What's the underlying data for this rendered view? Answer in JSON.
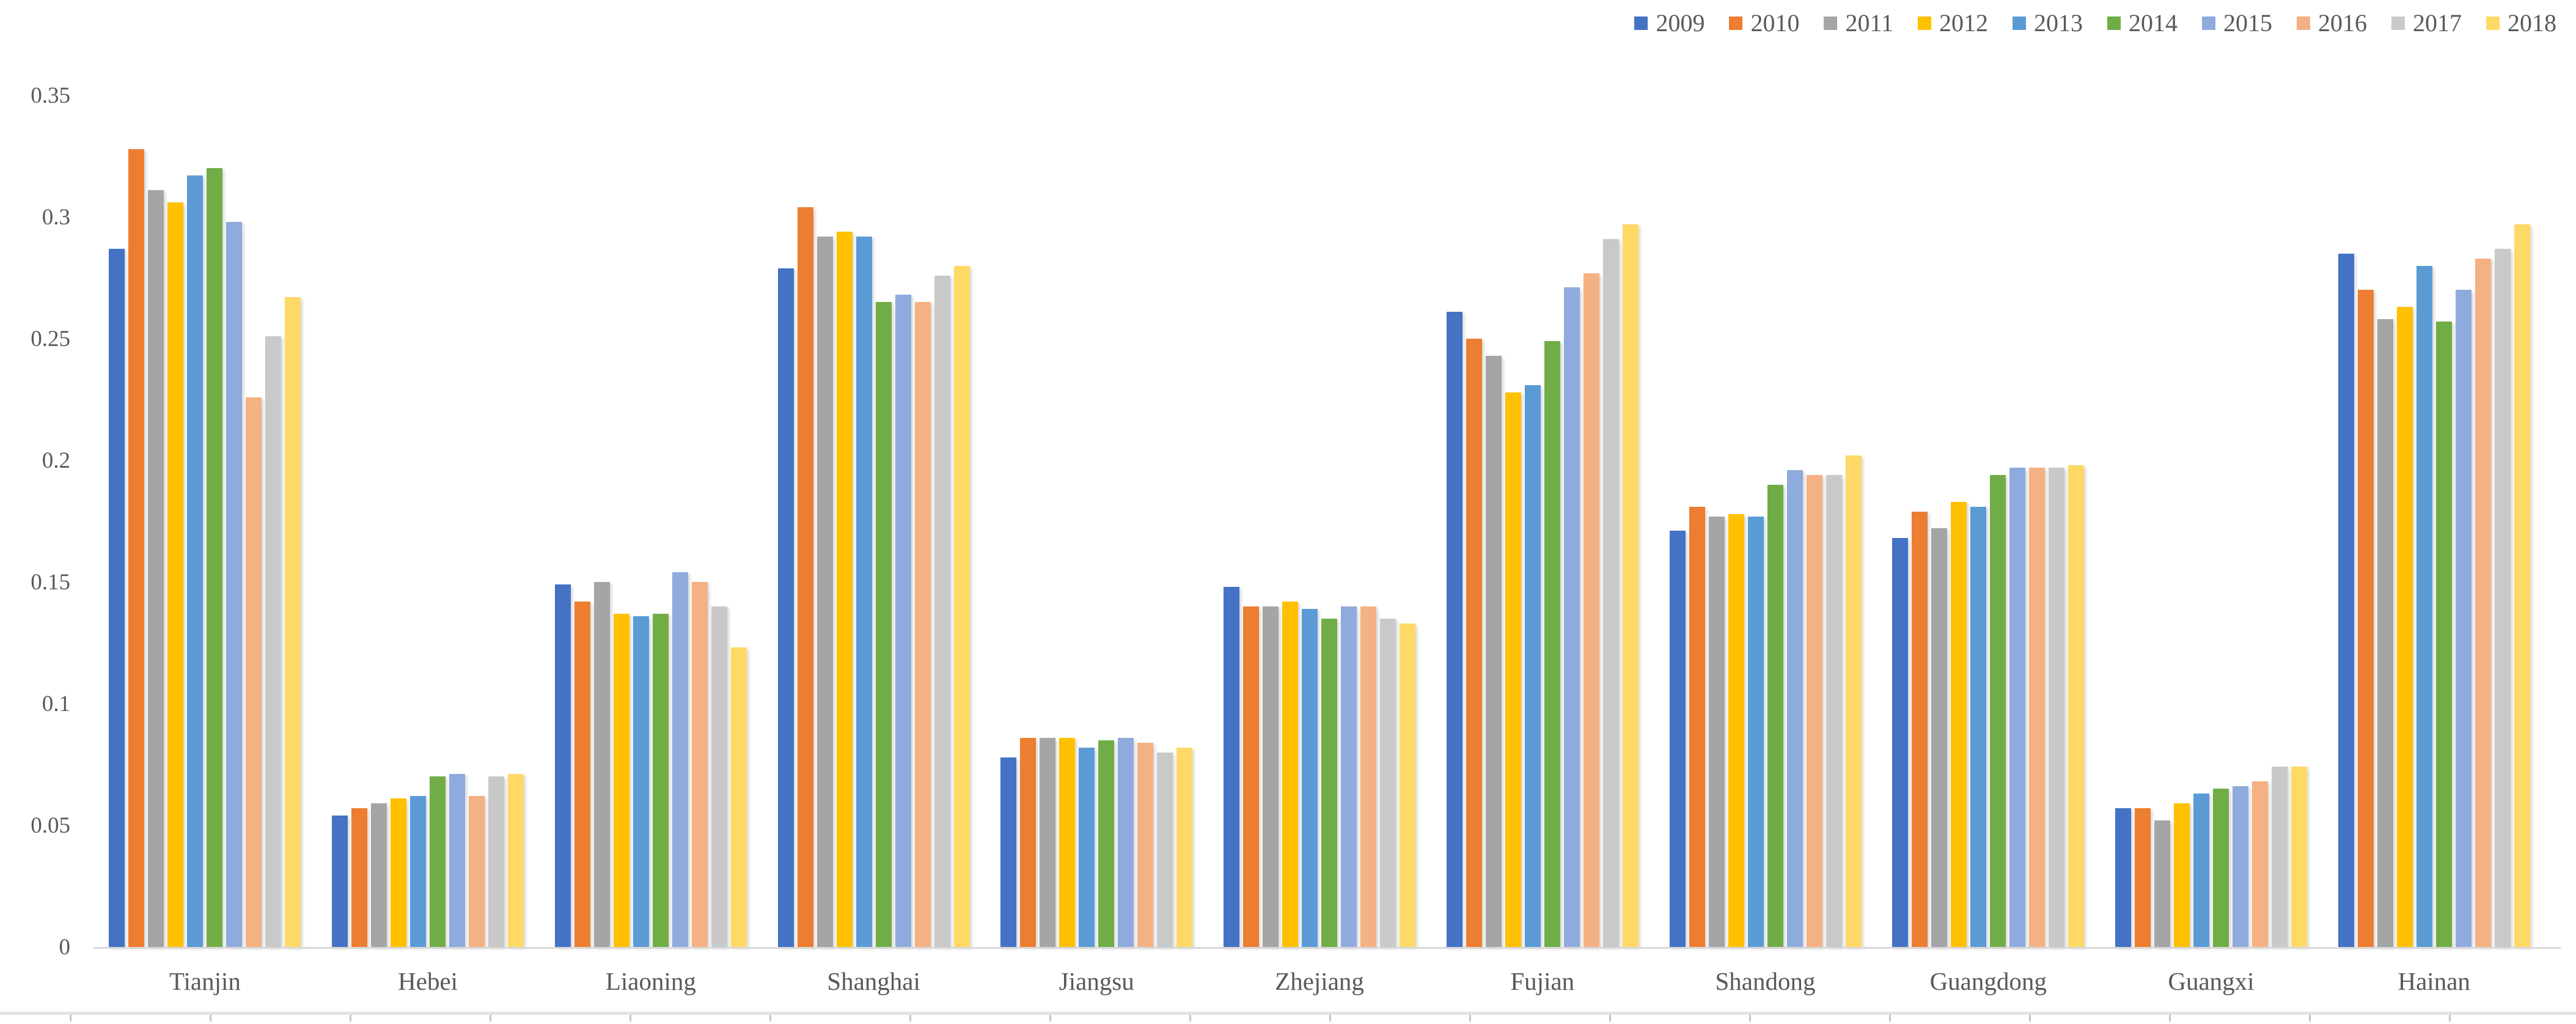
{
  "chart_data": {
    "type": "bar",
    "title": "",
    "xlabel": "",
    "ylabel": "",
    "grid": false,
    "legend_position": "top-right",
    "categories": [
      "Tianjin",
      "Hebei",
      "Liaoning",
      "Shanghai",
      "Jiangsu",
      "Zhejiang",
      "Fujian",
      "Shandong",
      "Guangdong",
      "Guangxi",
      "Hainan"
    ],
    "series": [
      {
        "name": "2009",
        "color": "#4472C4",
        "values": [
          0.287,
          0.054,
          0.149,
          0.279,
          0.078,
          0.148,
          0.261,
          0.171,
          0.168,
          0.057,
          0.285
        ]
      },
      {
        "name": "2010",
        "color": "#ED7D31",
        "values": [
          0.328,
          0.057,
          0.142,
          0.304,
          0.086,
          0.14,
          0.25,
          0.181,
          0.179,
          0.057,
          0.27
        ]
      },
      {
        "name": "2011",
        "color": "#A5A5A5",
        "values": [
          0.311,
          0.059,
          0.15,
          0.292,
          0.086,
          0.14,
          0.243,
          0.177,
          0.172,
          0.052,
          0.258
        ]
      },
      {
        "name": "2012",
        "color": "#FFC000",
        "values": [
          0.306,
          0.061,
          0.137,
          0.294,
          0.086,
          0.142,
          0.228,
          0.178,
          0.183,
          0.059,
          0.263
        ]
      },
      {
        "name": "2013",
        "color": "#5B9BD5",
        "values": [
          0.317,
          0.062,
          0.136,
          0.292,
          0.082,
          0.139,
          0.231,
          0.177,
          0.181,
          0.063,
          0.28
        ]
      },
      {
        "name": "2014",
        "color": "#70AD47",
        "values": [
          0.32,
          0.07,
          0.137,
          0.265,
          0.085,
          0.135,
          0.249,
          0.19,
          0.194,
          0.065,
          0.257
        ]
      },
      {
        "name": "2015",
        "color": "#8FAADC",
        "values": [
          0.298,
          0.071,
          0.154,
          0.268,
          0.086,
          0.14,
          0.271,
          0.196,
          0.197,
          0.066,
          0.27
        ]
      },
      {
        "name": "2016",
        "color": "#F4B183",
        "values": [
          0.226,
          0.062,
          0.15,
          0.265,
          0.084,
          0.14,
          0.277,
          0.194,
          0.197,
          0.068,
          0.283
        ]
      },
      {
        "name": "2017",
        "color": "#C9C9C9",
        "values": [
          0.251,
          0.07,
          0.14,
          0.276,
          0.08,
          0.135,
          0.291,
          0.194,
          0.197,
          0.074,
          0.287
        ]
      },
      {
        "name": "2018",
        "color": "#FFD966",
        "values": [
          0.267,
          0.071,
          0.123,
          0.28,
          0.082,
          0.133,
          0.297,
          0.202,
          0.198,
          0.074,
          0.297
        ]
      }
    ],
    "y_axis": {
      "min": 0,
      "max": 0.35,
      "tick_labels": [
        "0",
        "0.05",
        "0.1",
        "0.15",
        "0.2",
        "0.25",
        "0.3",
        "0.35"
      ],
      "tick_values": [
        0,
        0.05,
        0.1,
        0.15,
        0.2,
        0.25,
        0.3,
        0.35
      ]
    }
  },
  "colors": {
    "axis_line": "#d9d9d9",
    "label_text": "#595959",
    "bottom_line": "#e2e2e2",
    "bottom_tick": "#c6c6c6"
  }
}
